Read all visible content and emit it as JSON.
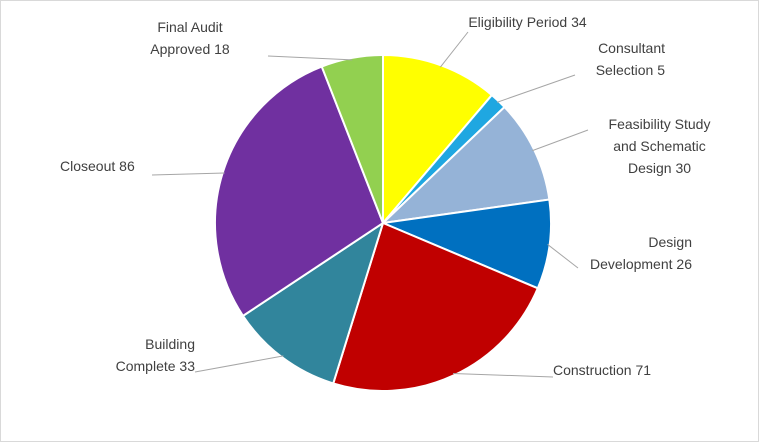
{
  "chart_data": {
    "type": "pie",
    "categories": [
      "Eligibility Period",
      "Consultant Selection",
      "Feasibility Study and Schematic Design",
      "Design Development",
      "Construction",
      "Building Complete",
      "Closeout",
      "Final Audit Approved"
    ],
    "values": [
      34,
      5,
      30,
      26,
      71,
      33,
      86,
      18
    ],
    "colors": [
      "#ffff00",
      "#1fa7e1",
      "#95b3d7",
      "#0070c0",
      "#c00000",
      "#31859c",
      "#7030a0",
      "#92d050"
    ]
  }
}
